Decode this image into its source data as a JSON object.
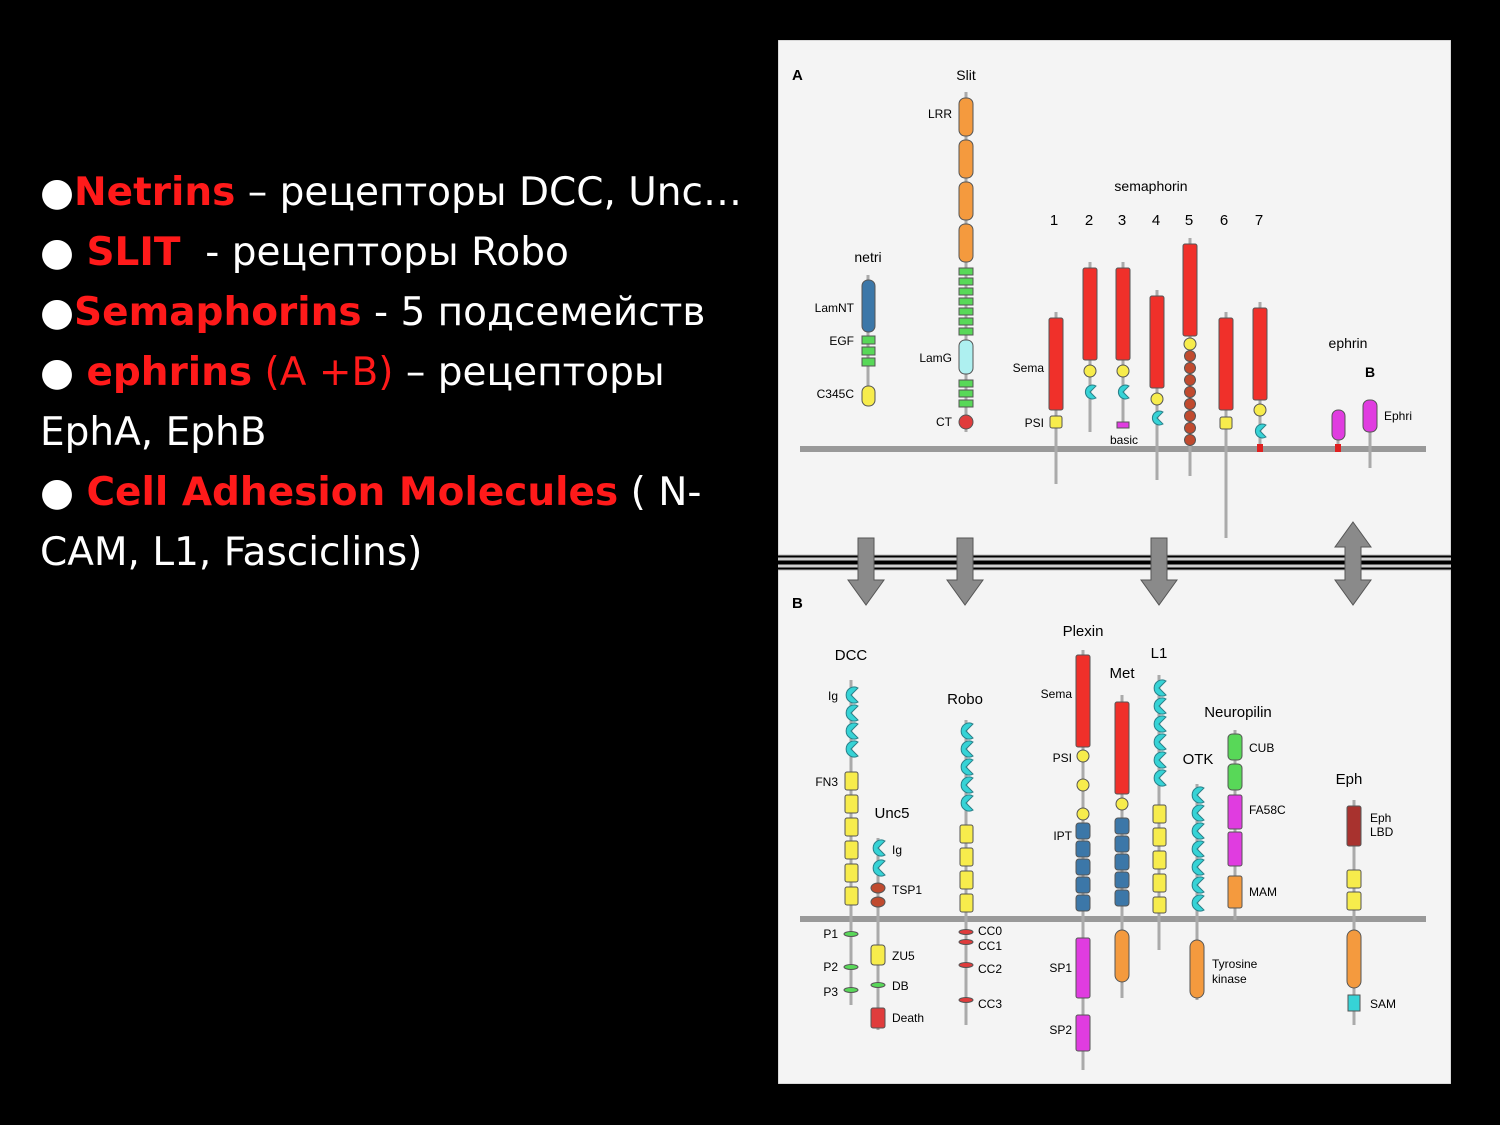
{
  "bullets": [
    {
      "dot": "●",
      "term": "Netrins",
      "rest": " – рецепторы DCC, Unc…"
    },
    {
      "dot": "● ",
      "term": "SLIT",
      "rest": "  - рецепторы Robo"
    },
    {
      "dot": "●",
      "term": "Semaphorins",
      "rest": " - 5 подсемейств"
    },
    {
      "dot": "● ",
      "term": "ephrins",
      "term2": " (A +B)",
      "rest": " – рецепторы",
      "cont": "EphA, EphB"
    },
    {
      "dot": "● ",
      "term": "Cell Adhesion Molecules",
      "rest": " ( N-",
      "cont": "CAM, L1, Fasciclins)"
    }
  ],
  "colors": {
    "background": "#000000",
    "text": "#ffffff",
    "accent": "#ff1a1a",
    "panel": "#f4f4f4",
    "membrane": "#999999",
    "sema": "#f0302a",
    "orange": "#f49a3e",
    "green": "#58d858",
    "cyan": "#36d3d6",
    "yellow": "#f7ec4c",
    "blue": "#3c77a8",
    "magenta": "#e03ce0",
    "brown": "#c04a2e",
    "lbd": "#a8322e"
  },
  "figure": {
    "panel_a": {
      "letter": "A",
      "netrin": {
        "title": "netri",
        "labels": [
          "LamNT",
          "EGF",
          "C345C"
        ]
      },
      "slit": {
        "title": "Slit",
        "labels": [
          "LRR",
          "LamG",
          "CT"
        ]
      },
      "semaphorin": {
        "title": "semaphorin",
        "classes": [
          "1",
          "2",
          "3",
          "4",
          "5",
          "6",
          "7"
        ],
        "labels": [
          "Sema",
          "PSI",
          "basic"
        ]
      },
      "ephrin": {
        "title": "ephrin",
        "sub": "B",
        "label": "Ephri"
      }
    },
    "panel_b": {
      "letter": "B",
      "dcc": {
        "title": "DCC",
        "labels": [
          "Ig",
          "FN3",
          "P1",
          "P2",
          "P3"
        ]
      },
      "unc5": {
        "title": "Unc5",
        "labels": [
          "Ig",
          "TSP1",
          "ZU5",
          "DB",
          "Death"
        ]
      },
      "robo": {
        "title": "Robo",
        "labels": [
          "CC0",
          "CC1",
          "CC2",
          "CC3"
        ]
      },
      "plexin": {
        "title": "Plexin",
        "labels": [
          "Sema",
          "PSI",
          "IPT",
          "SP1",
          "SP2"
        ]
      },
      "met": {
        "title": "Met"
      },
      "l1": {
        "title": "L1"
      },
      "otk": {
        "title": "OTK",
        "labels": [
          "Tyrosine",
          "kinase"
        ]
      },
      "neuropilin": {
        "title": "Neuropilin",
        "labels": [
          "CUB",
          "FA58C",
          "MAM"
        ]
      },
      "eph": {
        "title": "Eph",
        "labels": [
          "Eph",
          "LBD",
          "SAM"
        ]
      }
    }
  }
}
